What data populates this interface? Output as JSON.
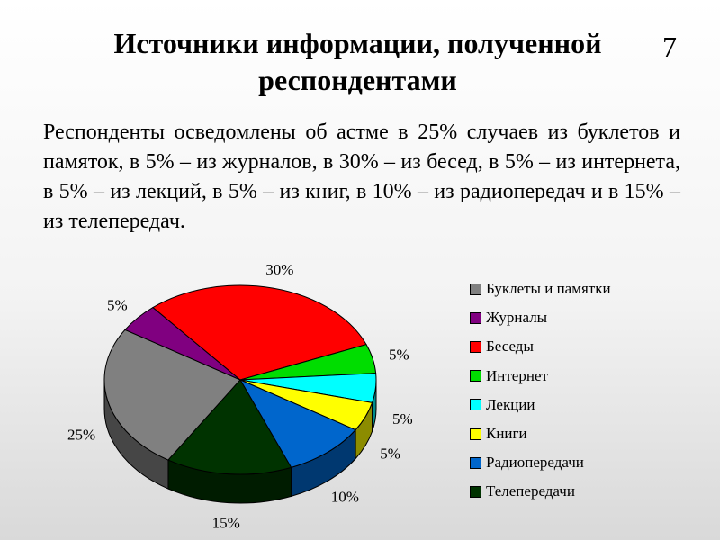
{
  "slide": {
    "title": "Источники информации, полученной респондентами",
    "number": "7",
    "text": "Респонденты осведомлены об астме в 25% случаев из буклетов и памяток, в 5% – из журналов, в 30% – из бесед, в 5% – из интернета, в 5% – из лекций, в 5% – из книг, в 10% – из радиопередач и в 15% – из телепередач."
  },
  "chart_data": {
    "type": "pie",
    "title": "",
    "categories": [
      "Буклеты и памятки",
      "Журналы",
      "Беседы",
      "Интернет",
      "Лекции",
      "Книги",
      "Радиопередачи",
      "Телепередачи"
    ],
    "values": [
      25,
      5,
      30,
      5,
      5,
      5,
      10,
      15
    ],
    "data_labels": [
      "25%",
      "5%",
      "30%",
      "5%",
      "5%",
      "5%",
      "10%",
      "15%"
    ],
    "colors": [
      "#808080",
      "#800080",
      "#ff0000",
      "#00dd00",
      "#00ffff",
      "#ffff00",
      "#0066cc",
      "#003300"
    ],
    "legend_position": "right",
    "style": "3d"
  }
}
